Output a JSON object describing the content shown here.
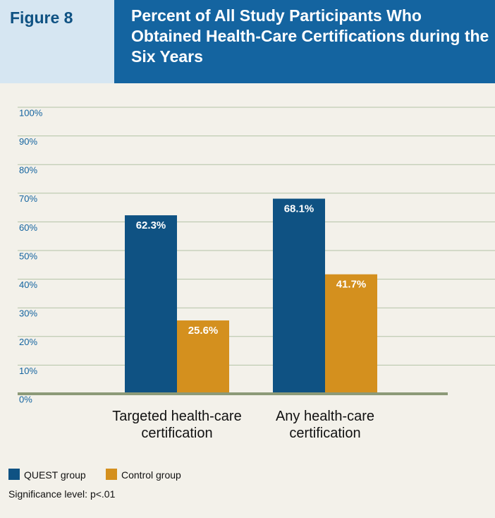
{
  "chart_data": {
    "type": "bar",
    "figure_label": "Figure 8",
    "title": "Percent of All Study Participants Who Obtained Health-Care Certifications during the Six Years",
    "categories": [
      "Targeted health-care certification",
      "Any health-care certification"
    ],
    "series": [
      {
        "name": "QUEST group",
        "color": "#0f5283",
        "values": [
          62.3,
          68.1
        ],
        "value_labels": [
          "62.3%",
          "68.1%"
        ]
      },
      {
        "name": "Control group",
        "color": "#d4901e",
        "values": [
          25.6,
          41.7
        ],
        "value_labels": [
          "25.6%",
          "41.7%"
        ]
      }
    ],
    "ylim": [
      0,
      100
    ],
    "yticks": [
      {
        "value": 0,
        "label": "0%"
      },
      {
        "value": 10,
        "label": "10%"
      },
      {
        "value": 20,
        "label": "20%"
      },
      {
        "value": 30,
        "label": "30%"
      },
      {
        "value": 40,
        "label": "40%"
      },
      {
        "value": 50,
        "label": "50%"
      },
      {
        "value": 60,
        "label": "60%"
      },
      {
        "value": 70,
        "label": "70%"
      },
      {
        "value": 80,
        "label": "80%"
      },
      {
        "value": 90,
        "label": "90%"
      },
      {
        "value": 100,
        "label": "100%"
      }
    ],
    "grid": true,
    "note": "Significance level: p<.01"
  }
}
